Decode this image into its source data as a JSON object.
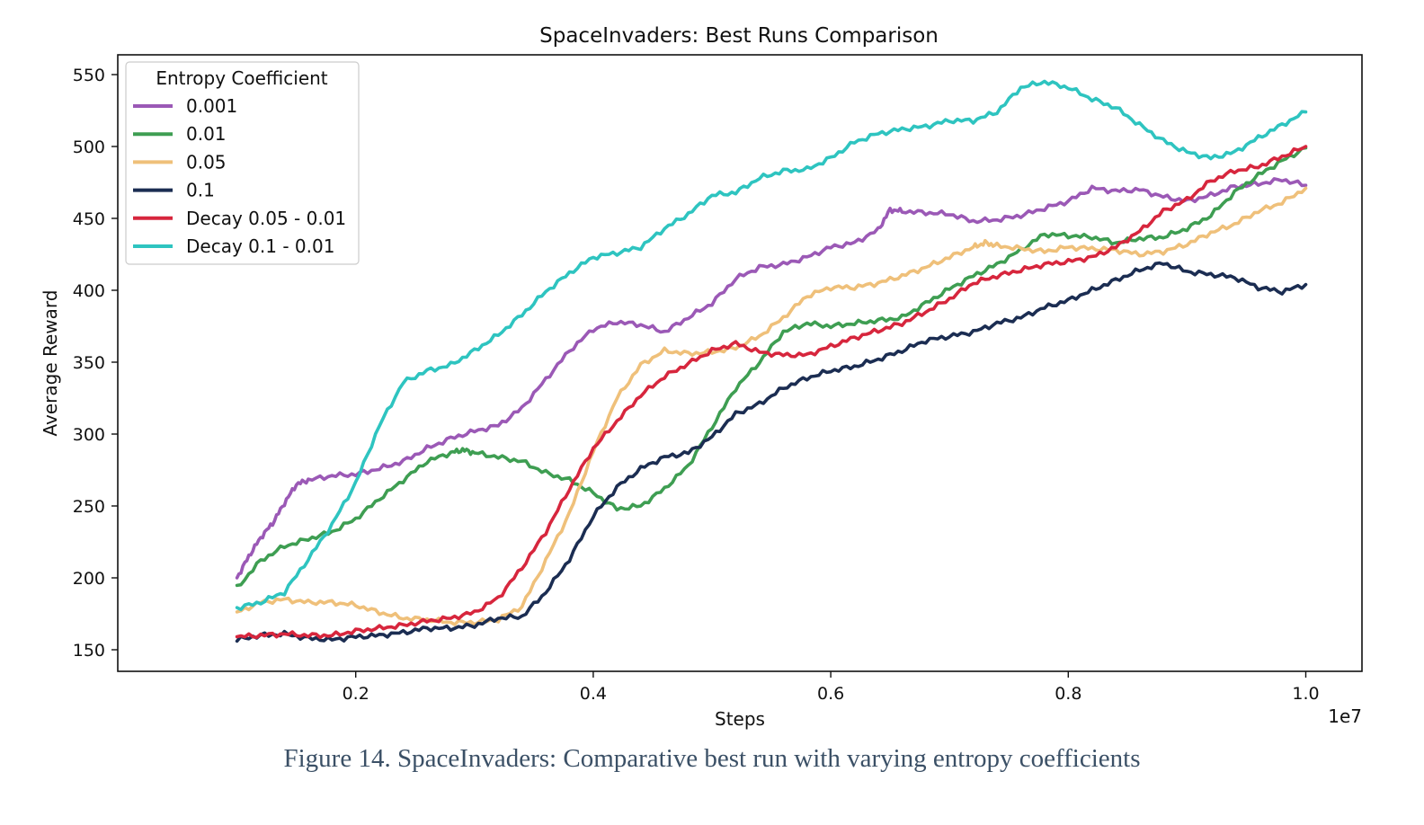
{
  "figure": {
    "caption": "Figure 14. SpaceInvaders: Comparative best run with varying entropy coefficients"
  },
  "chart_data": {
    "type": "line",
    "title": "SpaceInvaders: Best Runs Comparison",
    "xlabel": "Steps",
    "ylabel": "Average Reward",
    "x_multiplier_label": "1e7",
    "xlim": [
      0.0,
      1.0
    ],
    "ylim": [
      135,
      560
    ],
    "xticks": [
      0.2,
      0.4,
      0.6,
      0.8,
      1.0
    ],
    "xtick_labels": [
      "0.2",
      "0.4",
      "0.6",
      "0.8",
      "1.0"
    ],
    "yticks": [
      150,
      200,
      250,
      300,
      350,
      400,
      450,
      500,
      550
    ],
    "grid": false,
    "legend": {
      "title": "Entropy Coefficient",
      "placement": "top-left"
    },
    "series": [
      {
        "name": "0.001",
        "color": "#9b59b6",
        "points": [
          [
            0.1,
            200
          ],
          [
            0.11,
            215
          ],
          [
            0.12,
            228
          ],
          [
            0.13,
            238
          ],
          [
            0.14,
            252
          ],
          [
            0.15,
            265
          ],
          [
            0.16,
            268
          ],
          [
            0.18,
            271
          ],
          [
            0.2,
            272
          ],
          [
            0.22,
            276
          ],
          [
            0.24,
            281
          ],
          [
            0.26,
            290
          ],
          [
            0.28,
            297
          ],
          [
            0.3,
            302
          ],
          [
            0.32,
            306
          ],
          [
            0.34,
            318
          ],
          [
            0.36,
            338
          ],
          [
            0.38,
            358
          ],
          [
            0.4,
            373
          ],
          [
            0.42,
            378
          ],
          [
            0.44,
            376
          ],
          [
            0.46,
            371
          ],
          [
            0.48,
            381
          ],
          [
            0.5,
            391
          ],
          [
            0.52,
            408
          ],
          [
            0.54,
            416
          ],
          [
            0.56,
            418
          ],
          [
            0.58,
            423
          ],
          [
            0.6,
            430
          ],
          [
            0.62,
            433
          ],
          [
            0.64,
            442
          ],
          [
            0.65,
            456
          ],
          [
            0.66,
            455
          ],
          [
            0.68,
            454
          ],
          [
            0.7,
            453
          ],
          [
            0.72,
            448
          ],
          [
            0.74,
            449
          ],
          [
            0.76,
            452
          ],
          [
            0.78,
            457
          ],
          [
            0.8,
            462
          ],
          [
            0.82,
            471
          ],
          [
            0.84,
            469
          ],
          [
            0.86,
            470
          ],
          [
            0.88,
            465
          ],
          [
            0.9,
            462
          ],
          [
            0.92,
            466
          ],
          [
            0.94,
            472
          ],
          [
            0.96,
            474
          ],
          [
            0.98,
            477
          ],
          [
            1.0,
            473
          ]
        ]
      },
      {
        "name": "0.01",
        "color": "#3e9e52",
        "points": [
          [
            0.1,
            193
          ],
          [
            0.12,
            212
          ],
          [
            0.14,
            222
          ],
          [
            0.16,
            227
          ],
          [
            0.18,
            232
          ],
          [
            0.2,
            241
          ],
          [
            0.22,
            255
          ],
          [
            0.24,
            268
          ],
          [
            0.26,
            281
          ],
          [
            0.28,
            287
          ],
          [
            0.29,
            289
          ],
          [
            0.3,
            287
          ],
          [
            0.32,
            284
          ],
          [
            0.34,
            281
          ],
          [
            0.36,
            273
          ],
          [
            0.38,
            268
          ],
          [
            0.4,
            259
          ],
          [
            0.42,
            248
          ],
          [
            0.44,
            250
          ],
          [
            0.46,
            262
          ],
          [
            0.48,
            278
          ],
          [
            0.5,
            305
          ],
          [
            0.52,
            332
          ],
          [
            0.54,
            350
          ],
          [
            0.56,
            371
          ],
          [
            0.58,
            377
          ],
          [
            0.6,
            375
          ],
          [
            0.62,
            377
          ],
          [
            0.64,
            379
          ],
          [
            0.66,
            381
          ],
          [
            0.68,
            391
          ],
          [
            0.7,
            401
          ],
          [
            0.72,
            410
          ],
          [
            0.74,
            418
          ],
          [
            0.76,
            428
          ],
          [
            0.78,
            439
          ],
          [
            0.8,
            438
          ],
          [
            0.82,
            437
          ],
          [
            0.84,
            433
          ],
          [
            0.86,
            436
          ],
          [
            0.88,
            437
          ],
          [
            0.9,
            443
          ],
          [
            0.92,
            452
          ],
          [
            0.94,
            468
          ],
          [
            0.96,
            480
          ],
          [
            0.98,
            490
          ],
          [
            1.0,
            499
          ]
        ]
      },
      {
        "name": "0.05",
        "color": "#efc07a",
        "points": [
          [
            0.1,
            176
          ],
          [
            0.12,
            183
          ],
          [
            0.14,
            185
          ],
          [
            0.16,
            183
          ],
          [
            0.18,
            183
          ],
          [
            0.2,
            181
          ],
          [
            0.22,
            176
          ],
          [
            0.24,
            172
          ],
          [
            0.26,
            171
          ],
          [
            0.28,
            169
          ],
          [
            0.3,
            169
          ],
          [
            0.32,
            171
          ],
          [
            0.34,
            180
          ],
          [
            0.36,
            212
          ],
          [
            0.38,
            245
          ],
          [
            0.4,
            288
          ],
          [
            0.42,
            325
          ],
          [
            0.44,
            348
          ],
          [
            0.46,
            358
          ],
          [
            0.48,
            356
          ],
          [
            0.5,
            357
          ],
          [
            0.52,
            360
          ],
          [
            0.54,
            368
          ],
          [
            0.56,
            381
          ],
          [
            0.58,
            396
          ],
          [
            0.6,
            402
          ],
          [
            0.62,
            402
          ],
          [
            0.64,
            405
          ],
          [
            0.66,
            410
          ],
          [
            0.68,
            416
          ],
          [
            0.7,
            423
          ],
          [
            0.72,
            430
          ],
          [
            0.73,
            433
          ],
          [
            0.74,
            431
          ],
          [
            0.76,
            429
          ],
          [
            0.78,
            427
          ],
          [
            0.8,
            430
          ],
          [
            0.82,
            429
          ],
          [
            0.84,
            428
          ],
          [
            0.86,
            425
          ],
          [
            0.88,
            427
          ],
          [
            0.9,
            432
          ],
          [
            0.92,
            440
          ],
          [
            0.94,
            446
          ],
          [
            0.96,
            455
          ],
          [
            0.98,
            461
          ],
          [
            1.0,
            471
          ]
        ]
      },
      {
        "name": "0.1",
        "color": "#1b2d52",
        "points": [
          [
            0.1,
            157
          ],
          [
            0.12,
            160
          ],
          [
            0.14,
            161
          ],
          [
            0.16,
            158
          ],
          [
            0.18,
            157
          ],
          [
            0.2,
            159
          ],
          [
            0.22,
            160
          ],
          [
            0.24,
            162
          ],
          [
            0.26,
            165
          ],
          [
            0.28,
            165
          ],
          [
            0.3,
            167
          ],
          [
            0.32,
            172
          ],
          [
            0.34,
            173
          ],
          [
            0.36,
            190
          ],
          [
            0.38,
            213
          ],
          [
            0.4,
            243
          ],
          [
            0.42,
            263
          ],
          [
            0.44,
            276
          ],
          [
            0.46,
            284
          ],
          [
            0.48,
            287
          ],
          [
            0.5,
            298
          ],
          [
            0.52,
            314
          ],
          [
            0.54,
            321
          ],
          [
            0.56,
            332
          ],
          [
            0.58,
            339
          ],
          [
            0.6,
            344
          ],
          [
            0.62,
            347
          ],
          [
            0.64,
            352
          ],
          [
            0.66,
            358
          ],
          [
            0.68,
            365
          ],
          [
            0.7,
            368
          ],
          [
            0.72,
            371
          ],
          [
            0.74,
            377
          ],
          [
            0.76,
            381
          ],
          [
            0.78,
            388
          ],
          [
            0.8,
            393
          ],
          [
            0.82,
            400
          ],
          [
            0.84,
            407
          ],
          [
            0.86,
            414
          ],
          [
            0.88,
            419
          ],
          [
            0.9,
            413
          ],
          [
            0.92,
            411
          ],
          [
            0.94,
            409
          ],
          [
            0.96,
            402
          ],
          [
            0.98,
            399
          ],
          [
            1.0,
            404
          ]
        ]
      },
      {
        "name": "Decay 0.05 - 0.01",
        "color": "#d7263d",
        "points": [
          [
            0.1,
            159
          ],
          [
            0.12,
            160
          ],
          [
            0.14,
            161
          ],
          [
            0.16,
            160
          ],
          [
            0.18,
            160
          ],
          [
            0.2,
            163
          ],
          [
            0.22,
            165
          ],
          [
            0.24,
            167
          ],
          [
            0.26,
            170
          ],
          [
            0.28,
            172
          ],
          [
            0.3,
            176
          ],
          [
            0.32,
            186
          ],
          [
            0.34,
            207
          ],
          [
            0.36,
            232
          ],
          [
            0.38,
            262
          ],
          [
            0.4,
            290
          ],
          [
            0.42,
            309
          ],
          [
            0.44,
            327
          ],
          [
            0.46,
            340
          ],
          [
            0.48,
            349
          ],
          [
            0.5,
            358
          ],
          [
            0.52,
            363
          ],
          [
            0.54,
            357
          ],
          [
            0.56,
            355
          ],
          [
            0.58,
            355
          ],
          [
            0.6,
            361
          ],
          [
            0.62,
            367
          ],
          [
            0.64,
            372
          ],
          [
            0.66,
            377
          ],
          [
            0.68,
            385
          ],
          [
            0.7,
            394
          ],
          [
            0.72,
            405
          ],
          [
            0.74,
            410
          ],
          [
            0.76,
            414
          ],
          [
            0.78,
            418
          ],
          [
            0.8,
            420
          ],
          [
            0.82,
            423
          ],
          [
            0.84,
            430
          ],
          [
            0.86,
            441
          ],
          [
            0.88,
            455
          ],
          [
            0.9,
            463
          ],
          [
            0.92,
            476
          ],
          [
            0.94,
            483
          ],
          [
            0.96,
            486
          ],
          [
            0.98,
            493
          ],
          [
            1.0,
            500
          ]
        ]
      },
      {
        "name": "Decay 0.1 - 0.01",
        "color": "#2ec4c0",
        "points": [
          [
            0.1,
            179
          ],
          [
            0.12,
            183
          ],
          [
            0.14,
            190
          ],
          [
            0.16,
            213
          ],
          [
            0.18,
            237
          ],
          [
            0.2,
            266
          ],
          [
            0.22,
            306
          ],
          [
            0.24,
            336
          ],
          [
            0.26,
            344
          ],
          [
            0.28,
            348
          ],
          [
            0.3,
            358
          ],
          [
            0.32,
            369
          ],
          [
            0.34,
            383
          ],
          [
            0.36,
            399
          ],
          [
            0.38,
            412
          ],
          [
            0.4,
            423
          ],
          [
            0.42,
            426
          ],
          [
            0.44,
            430
          ],
          [
            0.46,
            443
          ],
          [
            0.48,
            453
          ],
          [
            0.5,
            466
          ],
          [
            0.52,
            468
          ],
          [
            0.54,
            478
          ],
          [
            0.56,
            483
          ],
          [
            0.58,
            484
          ],
          [
            0.6,
            492
          ],
          [
            0.62,
            503
          ],
          [
            0.64,
            509
          ],
          [
            0.66,
            512
          ],
          [
            0.68,
            514
          ],
          [
            0.7,
            518
          ],
          [
            0.72,
            518
          ],
          [
            0.74,
            524
          ],
          [
            0.76,
            541
          ],
          [
            0.78,
            545
          ],
          [
            0.8,
            541
          ],
          [
            0.82,
            533
          ],
          [
            0.84,
            527
          ],
          [
            0.86,
            515
          ],
          [
            0.88,
            504
          ],
          [
            0.9,
            496
          ],
          [
            0.92,
            492
          ],
          [
            0.94,
            496
          ],
          [
            0.96,
            506
          ],
          [
            0.98,
            515
          ],
          [
            1.0,
            524
          ]
        ]
      }
    ]
  }
}
